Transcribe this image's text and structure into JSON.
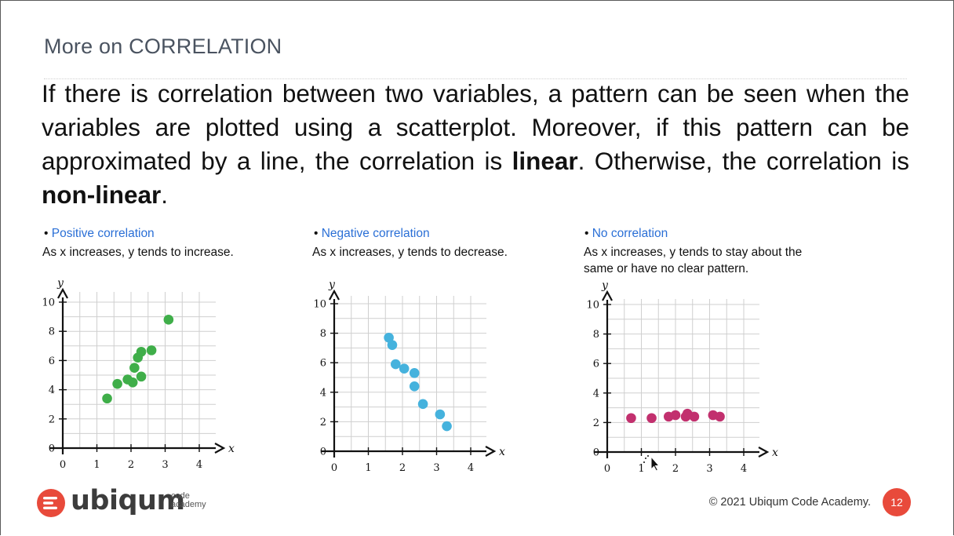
{
  "slide": {
    "title": "More on CORRELATION",
    "body_parts": [
      {
        "text": "If there is correlation between two variables, a pattern can be seen when the variables are plotted using a scatterplot. Moreover, if this pattern can be approximated by a line, the correlation is ",
        "bold": false
      },
      {
        "text": "linear",
        "bold": true
      },
      {
        "text": ". Otherwise, the correlation is ",
        "bold": false
      },
      {
        "text": "non-linear",
        "bold": true
      },
      {
        "text": ".",
        "bold": false
      }
    ],
    "footer": {
      "logo_word": "ubiqum",
      "logo_sub_1": "code",
      "logo_sub_2": "academy",
      "copyright": "© 2021 Ubiqum Code Academy.",
      "page_number": "12"
    },
    "colors": {
      "title": "#4a5360",
      "panel_title": "#2a6fd6",
      "positive_points": "#3fae49",
      "negative_points": "#45b2dd",
      "none_points": "#c2306e",
      "badge": "#e84a3b"
    }
  },
  "panels": [
    {
      "title": "Positive correlation",
      "description_lines": [
        "As x increases, y tends to increase."
      ]
    },
    {
      "title": "Negative correlation",
      "description_lines": [
        "As x increases, y tends to decrease."
      ]
    },
    {
      "title": "No correlation",
      "description_lines": [
        "As x increases, y tends to stay about the",
        "same or have no clear pattern."
      ]
    }
  ],
  "chart_data": [
    {
      "type": "scatter",
      "title": "Positive correlation",
      "xlabel": "x",
      "ylabel": "y",
      "xlim": [
        0,
        4.5
      ],
      "ylim": [
        0,
        10
      ],
      "x_ticks": [
        0,
        1,
        2,
        3,
        4
      ],
      "y_ticks": [
        0,
        2,
        4,
        6,
        8,
        10
      ],
      "grid": true,
      "series": [
        {
          "color": "#3fae49",
          "points": [
            {
              "x": 1.3,
              "y": 3.4
            },
            {
              "x": 1.6,
              "y": 4.4
            },
            {
              "x": 1.9,
              "y": 4.7
            },
            {
              "x": 2.05,
              "y": 4.5
            },
            {
              "x": 2.1,
              "y": 5.5
            },
            {
              "x": 2.2,
              "y": 6.2
            },
            {
              "x": 2.3,
              "y": 4.9
            },
            {
              "x": 2.3,
              "y": 6.6
            },
            {
              "x": 2.6,
              "y": 6.7
            },
            {
              "x": 3.1,
              "y": 8.8
            }
          ]
        }
      ]
    },
    {
      "type": "scatter",
      "title": "Negative correlation",
      "xlabel": "x",
      "ylabel": "y",
      "xlim": [
        0,
        4.5
      ],
      "ylim": [
        0,
        10
      ],
      "x_ticks": [
        0,
        1,
        2,
        3,
        4
      ],
      "y_ticks": [
        0,
        2,
        4,
        6,
        8,
        10
      ],
      "grid": true,
      "series": [
        {
          "color": "#45b2dd",
          "points": [
            {
              "x": 1.6,
              "y": 7.7
            },
            {
              "x": 1.7,
              "y": 7.2
            },
            {
              "x": 1.8,
              "y": 5.9
            },
            {
              "x": 2.05,
              "y": 5.6
            },
            {
              "x": 2.35,
              "y": 5.3
            },
            {
              "x": 2.35,
              "y": 4.4
            },
            {
              "x": 2.6,
              "y": 3.2
            },
            {
              "x": 3.1,
              "y": 2.5
            },
            {
              "x": 3.3,
              "y": 1.7
            }
          ]
        }
      ]
    },
    {
      "type": "scatter",
      "title": "No correlation",
      "xlabel": "x",
      "ylabel": "y",
      "xlim": [
        0,
        4.5
      ],
      "ylim": [
        0,
        10
      ],
      "x_ticks": [
        0,
        1,
        2,
        3,
        4
      ],
      "y_ticks": [
        0,
        2,
        4,
        6,
        8,
        10
      ],
      "grid": true,
      "series": [
        {
          "color": "#c2306e",
          "points": [
            {
              "x": 0.7,
              "y": 2.3
            },
            {
              "x": 1.3,
              "y": 2.3
            },
            {
              "x": 1.8,
              "y": 2.4
            },
            {
              "x": 2.0,
              "y": 2.5
            },
            {
              "x": 2.3,
              "y": 2.4
            },
            {
              "x": 2.35,
              "y": 2.6
            },
            {
              "x": 2.55,
              "y": 2.4
            },
            {
              "x": 3.1,
              "y": 2.5
            },
            {
              "x": 3.3,
              "y": 2.4
            }
          ]
        }
      ]
    }
  ]
}
